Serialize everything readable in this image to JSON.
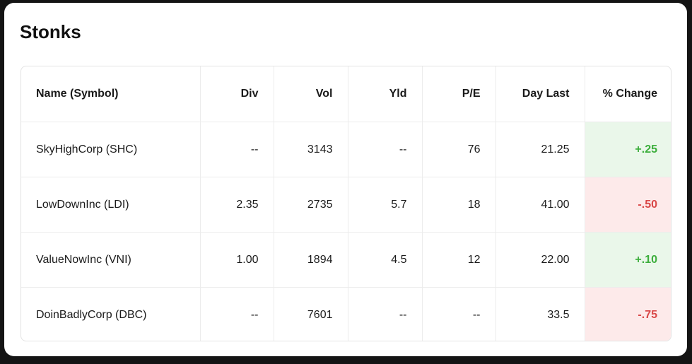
{
  "title": "Stonks",
  "columns": [
    {
      "label": "Name (Symbol)",
      "align": "left"
    },
    {
      "label": "Div",
      "align": "right"
    },
    {
      "label": "Vol",
      "align": "right"
    },
    {
      "label": "Yld",
      "align": "right"
    },
    {
      "label": "P/E",
      "align": "right"
    },
    {
      "label": "Day Last",
      "align": "right"
    },
    {
      "label": "% Change",
      "align": "right"
    }
  ],
  "rows": [
    {
      "name": "SkyHighCorp (SHC)",
      "div": "--",
      "vol": "3143",
      "yld": "--",
      "pe": "76",
      "day_last": "21.25",
      "change": "+.25",
      "direction": "up"
    },
    {
      "name": "LowDownInc (LDI)",
      "div": "2.35",
      "vol": "2735",
      "yld": "5.7",
      "pe": "18",
      "day_last": "41.00",
      "change": "-.50",
      "direction": "down"
    },
    {
      "name": "ValueNowInc (VNI)",
      "div": "1.00",
      "vol": "1894",
      "yld": "4.5",
      "pe": "12",
      "day_last": "22.00",
      "change": "+.10",
      "direction": "up"
    },
    {
      "name": "DoinBadlyCorp (DBC)",
      "div": "--",
      "vol": "7601",
      "yld": "--",
      "pe": "--",
      "day_last": "33.5",
      "change": "-.75",
      "direction": "down"
    }
  ],
  "colors": {
    "positive_text": "#3cae3c",
    "positive_bg": "#eaf7ea",
    "negative_text": "#d94848",
    "negative_bg": "#fdeaea"
  }
}
